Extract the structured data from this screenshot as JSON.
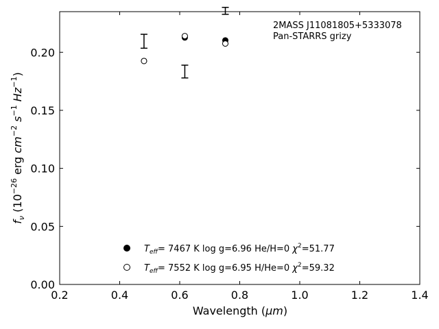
{
  "chart_data": {
    "type": "scatter",
    "xlabel_prefix": "Wavelength (",
    "xlabel_unit": "μm",
    "xlabel_suffix": ")",
    "ylabel_prefix": "f",
    "ylabel_sub": "ν",
    "ylabel_open": " (10",
    "ylabel_exp1": "−26",
    "ylabel_erg": " erg ",
    "ylabel_cm": "cm",
    "ylabel_exp2": "−2",
    "ylabel_s": " s",
    "ylabel_exp3": "−1",
    "ylabel_hz": " Hz",
    "ylabel_exp4": "−1",
    "ylabel_close": ")",
    "xlim": [
      0.2,
      1.4
    ],
    "ylim": [
      0.0,
      0.235
    ],
    "x_ticks": [
      0.2,
      0.4,
      0.6,
      0.8,
      1.0,
      1.2,
      1.4
    ],
    "x_tick_labels": [
      "0.2",
      "0.4",
      "0.6",
      "0.8",
      "1.0",
      "1.2",
      "1.4"
    ],
    "y_ticks": [
      0.0,
      0.05,
      0.1,
      0.15,
      0.2
    ],
    "y_tick_labels": [
      "0.00",
      "0.05",
      "0.10",
      "0.15",
      "0.20"
    ],
    "grid": false,
    "annotation_lines": [
      "2MASS J11081805+5333078",
      "Pan-STARRS grizy"
    ],
    "observed": {
      "x": [
        0.481,
        0.617,
        0.752
      ],
      "y": [
        0.2095,
        0.1834,
        0.2357
      ],
      "yerr": [
        0.006,
        0.0055,
        0.003
      ]
    },
    "series": [
      {
        "marker": "filled-circle",
        "teff_sym": "T",
        "teff_sub": "eff",
        "teff_value": "=  7467 K  log g=6.96  He/H=0  ",
        "chi_sym": "χ",
        "chi_exp": "2",
        "chi_value": "=51.77",
        "x": [
          0.481,
          0.617,
          0.752
        ],
        "y": [
          0.1925,
          0.2127,
          0.2103
        ]
      },
      {
        "marker": "open-circle",
        "teff_sym": "T",
        "teff_sub": "eff",
        "teff_value": "=  7552 K  log g=6.95  H/He=0  ",
        "chi_sym": "χ",
        "chi_exp": "2",
        "chi_value": "=59.32",
        "x": [
          0.481,
          0.617,
          0.752
        ],
        "y": [
          0.1925,
          0.214,
          0.2075
        ]
      }
    ],
    "legend_placement": "lower-center"
  }
}
